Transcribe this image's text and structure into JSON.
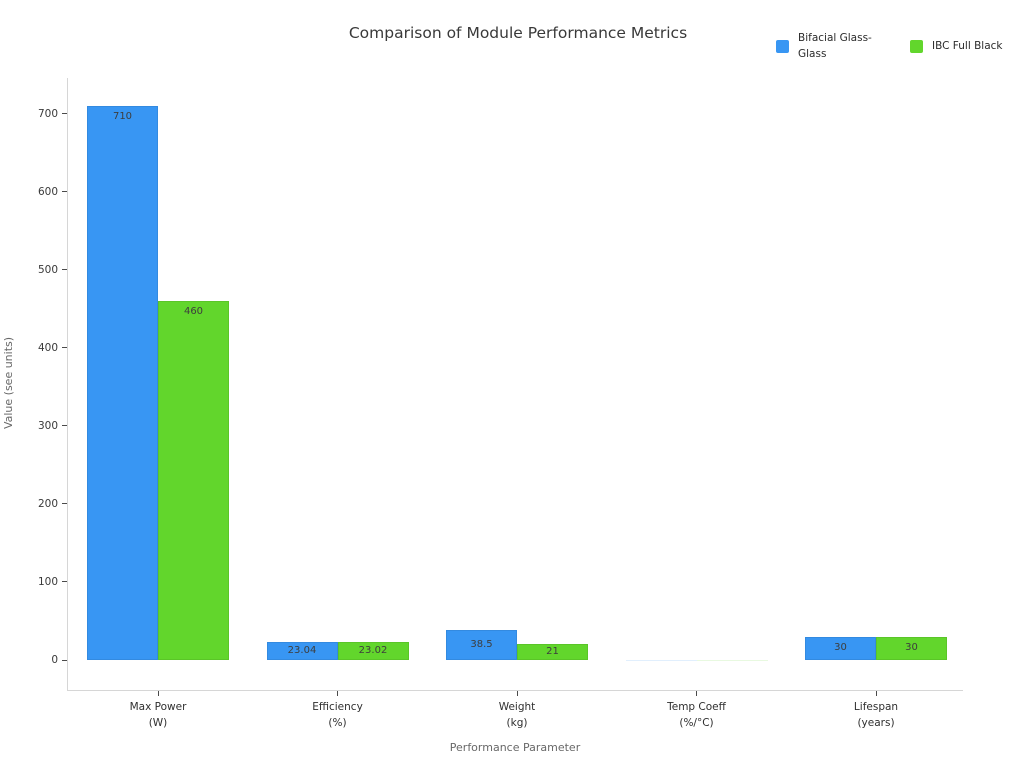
{
  "title": "Comparison of Module Performance Metrics",
  "chart_data": {
    "type": "bar",
    "title": "Comparison of Module Performance Metrics",
    "xlabel": "Performance Parameter",
    "ylabel": "Value (see units)",
    "categories": [
      "Max Power\n(W)",
      "Efficiency\n(%)",
      "Weight\n(kg)",
      "Temp Coeff\n(%/°C)",
      "Lifespan\n(years)"
    ],
    "series": [
      {
        "name": "Bifacial Glass-Glass",
        "color": "#3896f3",
        "values": [
          710,
          23.04,
          38.5,
          -0.3,
          30
        ],
        "bar_labels": [
          "710",
          "23.04",
          "38.5",
          "",
          "30"
        ]
      },
      {
        "name": "IBC Full Black",
        "color": "#62d62c",
        "values": [
          460,
          23.02,
          21,
          -0.3,
          30
        ],
        "bar_labels": [
          "460",
          "23.02",
          "21",
          "",
          "30"
        ]
      }
    ],
    "yticks": [
      0,
      100,
      200,
      300,
      400,
      500,
      600,
      700
    ],
    "ylim": [
      -38,
      746
    ],
    "grid": false,
    "legend_position": "top-right"
  }
}
